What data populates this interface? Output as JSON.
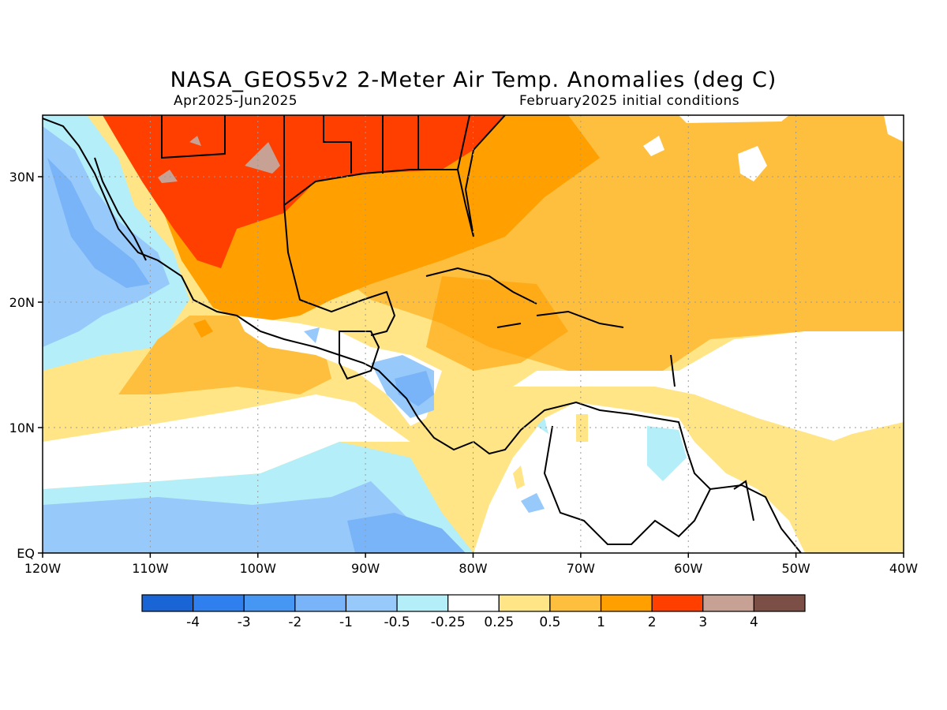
{
  "header": {
    "title": "NASA_GEOS5v2 2-Meter Air Temp. Anomalies (deg C)",
    "period": "Apr2025-Jun2025",
    "init": "February2025 initial conditions"
  },
  "map": {
    "x_ticks": [
      "120W",
      "110W",
      "100W",
      "90W",
      "80W",
      "70W",
      "60W",
      "50W",
      "40W"
    ],
    "y_ticks": [
      "EQ",
      "10N",
      "20N",
      "30N"
    ],
    "regions": {
      "north_america": "hot",
      "gulf_of_mexico": "warm",
      "caribbean": "warm",
      "south_america": "neutral",
      "eastern_pacific": "cool",
      "central_america": "cool"
    }
  },
  "legend": {
    "colors": [
      "#1965d6",
      "#2f7fee",
      "#4697f3",
      "#78b4f7",
      "#97c9fa",
      "#b4eef8",
      "#ffffff",
      "#ffe585",
      "#ffbf3e",
      "#ff9f00",
      "#ff3f00",
      "#c7a193",
      "#7b4f46"
    ],
    "labels": [
      "-4",
      "-3",
      "-2",
      "-1",
      "-0.5",
      "-0.25",
      "0.25",
      "0.5",
      "1",
      "2",
      "3",
      "4"
    ]
  }
}
